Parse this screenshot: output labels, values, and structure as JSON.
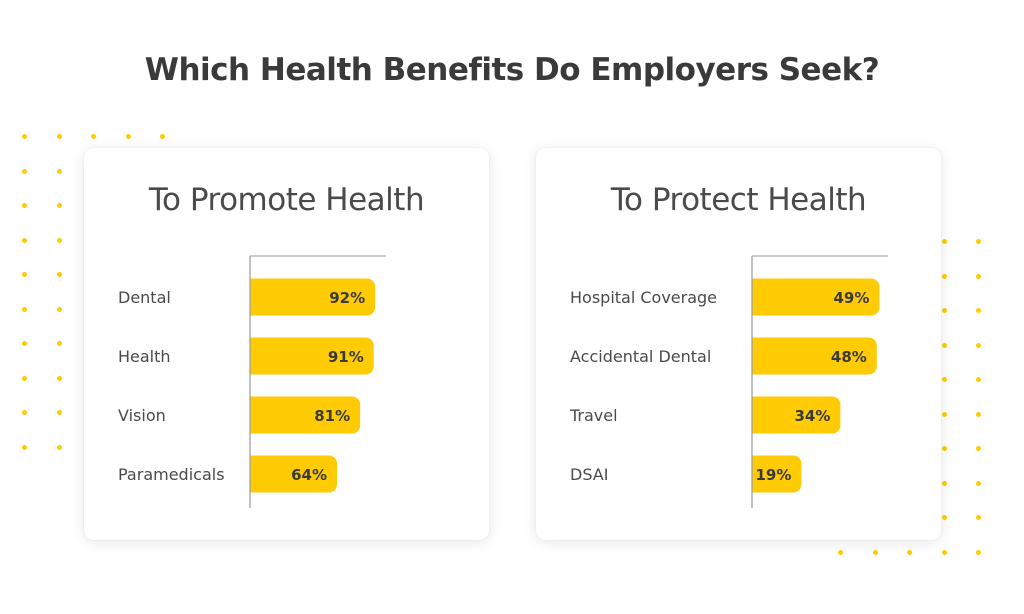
{
  "title": "Which Health Benefits Do Employers Seek?",
  "colors": {
    "bar": "#FFCB05",
    "dot": "#FFCB05",
    "axis": "#9a9a9a"
  },
  "chart_data": [
    {
      "type": "bar",
      "title": "To Promote Health",
      "categories": [
        "Dental",
        "Health",
        "Vision",
        "Paramedicals"
      ],
      "values": [
        92,
        91,
        81,
        64
      ],
      "value_labels": [
        "92%",
        "91%",
        "81%",
        "64%"
      ],
      "orientation": "horizontal"
    },
    {
      "type": "bar",
      "title": "To Protect Health",
      "categories": [
        "Hospital Coverage",
        "Accidental Dental",
        "Travel",
        "DSAI"
      ],
      "values": [
        49,
        48,
        34,
        19
      ],
      "value_labels": [
        "49%",
        "48%",
        "34%",
        "19%"
      ],
      "orientation": "horizontal"
    }
  ]
}
